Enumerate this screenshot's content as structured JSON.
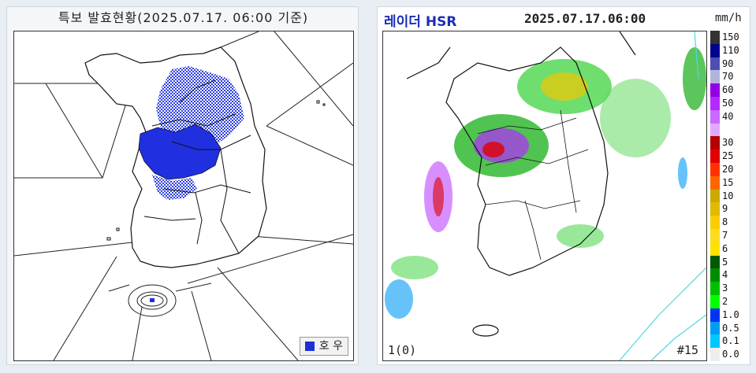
{
  "left_panel": {
    "title": "특보 발효현황(2025.07.17. 06:00 기준)",
    "legend": {
      "label": "호 우",
      "color": "#1f2fd8"
    }
  },
  "right_panel": {
    "title_product": "레이더 HSR",
    "title_time": "2025.07.17.06:00",
    "unit": "mm/h",
    "label_bottom_left": "1(0)",
    "label_bottom_right": "#15",
    "scale": [
      {
        "label": "150",
        "color": "#333333"
      },
      {
        "label": "110",
        "color": "#000390"
      },
      {
        "label": "90",
        "color": "#4c4eb1"
      },
      {
        "label": "70",
        "color": "#b3b4de"
      },
      {
        "label": "60",
        "color": "#9300e4"
      },
      {
        "label": "50",
        "color": "#b329ff"
      },
      {
        "label": "40",
        "color": "#c969ff"
      },
      {
        "label": "",
        "color": "#e0a9ff"
      },
      {
        "label": "30",
        "color": "#b40000"
      },
      {
        "label": "25",
        "color": "#e00000"
      },
      {
        "label": "20",
        "color": "#ff3200"
      },
      {
        "label": "15",
        "color": "#ff6600"
      },
      {
        "label": "10",
        "color": "#ccaa00"
      },
      {
        "label": "9",
        "color": "#e0b900"
      },
      {
        "label": "8",
        "color": "#f9cd00"
      },
      {
        "label": "7",
        "color": "#ffdc1f"
      },
      {
        "label": "6",
        "color": "#ffe100"
      },
      {
        "label": "5",
        "color": "#005a00"
      },
      {
        "label": "4",
        "color": "#008c00"
      },
      {
        "label": "3",
        "color": "#00be00"
      },
      {
        "label": "2",
        "color": "#00ff00"
      },
      {
        "label": "1.0",
        "color": "#0033f5"
      },
      {
        "label": "0.5",
        "color": "#009bf5"
      },
      {
        "label": "0.1",
        "color": "#00c8ff"
      },
      {
        "label": "0.0",
        "color": "#eeeeee"
      }
    ]
  }
}
